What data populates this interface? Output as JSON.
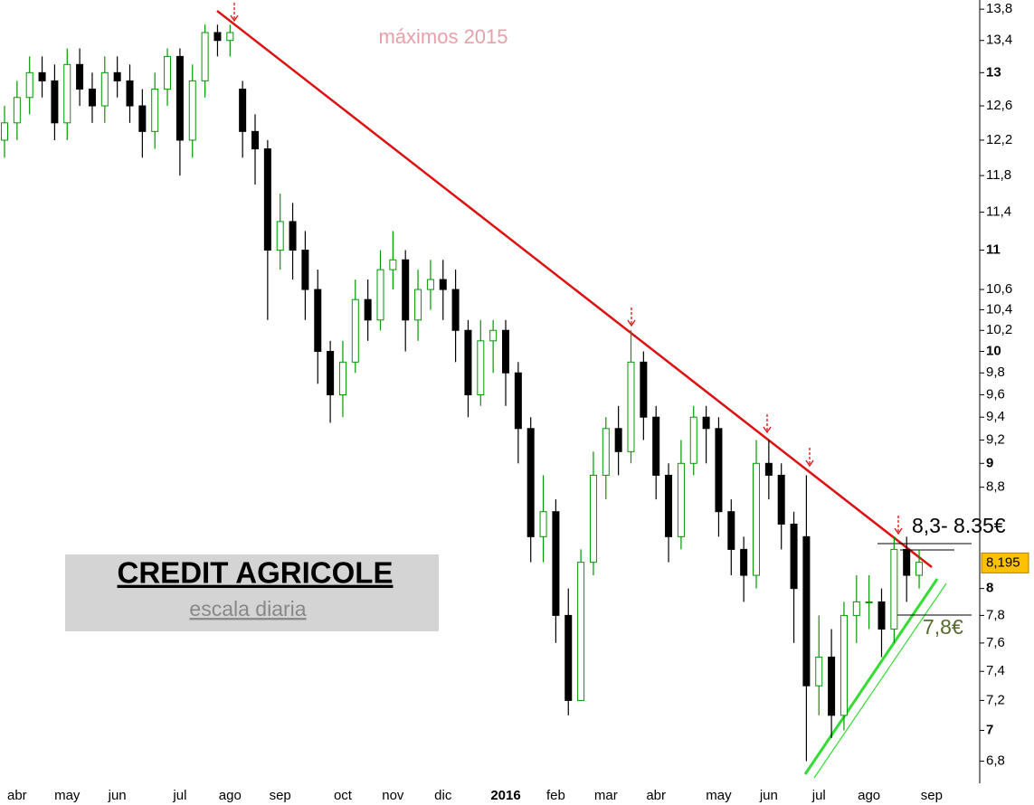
{
  "chart_data": {
    "type": "candlestick",
    "title": "CREDIT AGRICOLE",
    "subtitle": "escala diaria",
    "annotations": [
      "máximos 2015",
      "8,3- 8.35€",
      "7,8€"
    ],
    "last_price": {
      "value": 8.195,
      "label": "8,195"
    },
    "categories": [
      null,
      "abr",
      null,
      null,
      null,
      "may",
      null,
      null,
      null,
      "jun",
      null,
      null,
      null,
      null,
      "jul",
      null,
      null,
      null,
      "ago",
      null,
      null,
      null,
      "sep",
      null,
      null,
      null,
      null,
      "oct",
      null,
      null,
      null,
      "nov",
      null,
      null,
      null,
      "dic",
      null,
      null,
      null,
      null,
      "2016",
      null,
      null,
      null,
      "feb",
      null,
      null,
      null,
      "mar",
      null,
      null,
      null,
      "abr",
      null,
      null,
      null,
      null,
      "may",
      null,
      null,
      null,
      "jun",
      null,
      null,
      null,
      "jul",
      null,
      null,
      null,
      "ago",
      null,
      null,
      null,
      null,
      "sep"
    ],
    "open": [
      12.2,
      12.4,
      12.7,
      13.0,
      12.9,
      12.4,
      13.1,
      12.8,
      12.6,
      13.0,
      12.9,
      12.6,
      12.3,
      12.8,
      13.2,
      12.2,
      12.9,
      13.5,
      13.4,
      12.8,
      12.3,
      12.1,
      11.0,
      11.3,
      11.0,
      10.6,
      10.0,
      9.6,
      9.9,
      10.5,
      10.3,
      10.8,
      10.9,
      10.3,
      10.6,
      10.7,
      10.6,
      10.2,
      9.6,
      10.1,
      10.2,
      9.8,
      9.3,
      8.4,
      8.6,
      7.8,
      7.2,
      8.2,
      8.9,
      9.3,
      9.1,
      9.9,
      9.4,
      8.9,
      8.4,
      9.0,
      9.4,
      9.3,
      8.6,
      8.3,
      8.1,
      9.0,
      8.9,
      8.5,
      8.4,
      7.3,
      7.5,
      7.1,
      7.8,
      7.9,
      7.9,
      7.7,
      8.3,
      8.1,
      null
    ],
    "high": [
      12.6,
      12.9,
      13.2,
      13.2,
      13.1,
      13.3,
      13.3,
      13.0,
      13.2,
      13.2,
      13.1,
      12.8,
      13.0,
      13.3,
      13.3,
      13.1,
      13.6,
      13.6,
      13.6,
      12.9,
      12.5,
      12.2,
      11.6,
      11.5,
      11.2,
      10.8,
      10.1,
      10.1,
      10.7,
      10.7,
      11.0,
      11.2,
      11.0,
      10.8,
      10.9,
      10.9,
      10.8,
      10.3,
      10.3,
      10.3,
      10.3,
      9.9,
      9.4,
      8.9,
      8.7,
      8.0,
      8.3,
      9.1,
      9.4,
      9.5,
      10.2,
      10.0,
      9.5,
      9.0,
      9.2,
      9.5,
      9.5,
      9.4,
      8.7,
      8.4,
      9.2,
      9.2,
      9.0,
      8.6,
      8.9,
      7.8,
      7.7,
      7.9,
      8.1,
      8.1,
      8.0,
      8.4,
      8.4,
      8.3,
      null
    ],
    "low": [
      12.0,
      12.2,
      12.5,
      12.7,
      12.2,
      12.2,
      12.6,
      12.4,
      12.4,
      12.7,
      12.4,
      12.0,
      12.1,
      12.6,
      11.8,
      12.0,
      12.7,
      13.2,
      13.2,
      12.0,
      11.7,
      10.3,
      10.8,
      10.7,
      10.3,
      9.7,
      9.35,
      9.4,
      9.8,
      10.1,
      10.2,
      10.6,
      10.0,
      10.1,
      10.4,
      10.3,
      9.9,
      9.4,
      9.5,
      9.8,
      9.5,
      9.0,
      8.2,
      8.2,
      7.6,
      7.1,
      7.2,
      8.1,
      8.7,
      8.9,
      9.0,
      9.2,
      8.7,
      8.2,
      8.3,
      8.9,
      9.0,
      8.4,
      8.1,
      7.9,
      8.0,
      8.7,
      8.3,
      7.6,
      6.8,
      7.1,
      6.95,
      7.0,
      7.6,
      7.7,
      7.5,
      7.6,
      7.9,
      8.0,
      null
    ],
    "close": [
      12.4,
      12.7,
      13.0,
      12.9,
      12.4,
      13.1,
      12.8,
      12.6,
      13.0,
      12.9,
      12.6,
      12.3,
      12.8,
      13.2,
      12.2,
      12.9,
      13.5,
      13.4,
      13.5,
      12.3,
      12.1,
      11.0,
      11.3,
      11.0,
      10.6,
      10.0,
      9.6,
      9.9,
      10.5,
      10.3,
      10.8,
      10.9,
      10.3,
      10.6,
      10.7,
      10.6,
      10.2,
      9.6,
      10.1,
      10.2,
      9.8,
      9.3,
      8.4,
      8.6,
      7.8,
      7.2,
      8.2,
      8.9,
      9.3,
      9.1,
      9.9,
      9.4,
      8.9,
      8.4,
      9.0,
      9.4,
      9.3,
      8.6,
      8.3,
      8.1,
      9.0,
      8.9,
      8.5,
      8.0,
      7.3,
      7.5,
      7.1,
      7.8,
      7.9,
      7.9,
      7.7,
      8.3,
      8.1,
      8.2,
      null
    ],
    "up_color": "#009900",
    "down_color": "#000000",
    "log_scale": true,
    "ylim": [
      6.66,
      13.92
    ],
    "yticks": [
      {
        "value": 6.8,
        "label": "6,8"
      },
      7,
      {
        "value": 7.2,
        "label": "7,2"
      },
      {
        "value": 7.4,
        "label": "7,4"
      },
      {
        "value": 7.6,
        "label": "7,6"
      },
      {
        "value": 7.8,
        "label": "7,8"
      },
      8,
      {
        "value": 8.8,
        "label": "8,8"
      },
      9,
      {
        "value": 9.2,
        "label": "9,2"
      },
      {
        "value": 9.4,
        "label": "9,4"
      },
      {
        "value": 9.6,
        "label": "9,6"
      },
      {
        "value": 9.8,
        "label": "9,8"
      },
      10,
      {
        "value": 10.2,
        "label": "10,2"
      },
      {
        "value": 10.4,
        "label": "10,4"
      },
      {
        "value": 10.6,
        "label": "10,6"
      },
      11,
      {
        "value": 11.4,
        "label": "11,4"
      },
      {
        "value": 11.8,
        "label": "11,8"
      },
      {
        "value": 12.2,
        "label": "12,2"
      },
      {
        "value": 12.6,
        "label": "12,6"
      },
      13,
      {
        "value": 13.4,
        "label": "13,4"
      },
      {
        "value": 13.8,
        "label": "13,8"
      }
    ]
  }
}
